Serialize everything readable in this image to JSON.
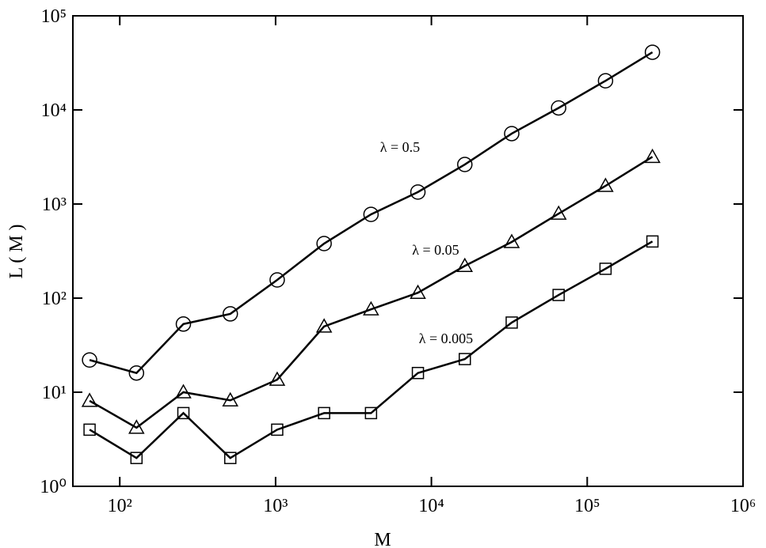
{
  "chart_data": {
    "type": "line",
    "x_label": "M",
    "y_label": "L ( M )",
    "xscale": "log",
    "yscale": "log",
    "xlim": [
      50,
      1000000
    ],
    "ylim": [
      1,
      100000
    ],
    "xticks": [
      {
        "value": 100,
        "label": "10²"
      },
      {
        "value": 1000,
        "label": "10³"
      },
      {
        "value": 10000,
        "label": "10⁴"
      },
      {
        "value": 100000,
        "label": "10⁵"
      },
      {
        "value": 1000000,
        "label": "10⁶"
      }
    ],
    "yticks": [
      {
        "value": 1,
        "label": "10⁰"
      },
      {
        "value": 10,
        "label": "10¹"
      },
      {
        "value": 100,
        "label": "10²"
      },
      {
        "value": 1000,
        "label": "10³"
      },
      {
        "value": 10000,
        "label": "10⁴"
      },
      {
        "value": 100000,
        "label": "10⁵"
      }
    ],
    "x": [
      64,
      128,
      256,
      512,
      1024,
      2048,
      4096,
      8192,
      16384,
      32768,
      65536,
      131072,
      262144
    ],
    "series": [
      {
        "name": "λ = 0.5",
        "color": "#000000",
        "marker": "circle",
        "values": [
          22,
          16,
          53,
          68,
          156,
          380,
          776,
          1340,
          2630,
          5600,
          10500,
          20400,
          41000
        ]
      },
      {
        "name": "λ = 0.05",
        "color": "#000000",
        "marker": "triangle",
        "values": [
          8.1,
          4.2,
          10,
          8.2,
          13.6,
          50,
          76,
          114,
          220,
          395,
          790,
          1560,
          3170
        ]
      },
      {
        "name": "λ = 0.005",
        "color": "#000000",
        "marker": "square",
        "values": [
          4,
          2,
          6,
          2,
          4,
          6,
          6,
          16,
          22.5,
          55,
          108,
          205,
          400
        ]
      }
    ]
  }
}
